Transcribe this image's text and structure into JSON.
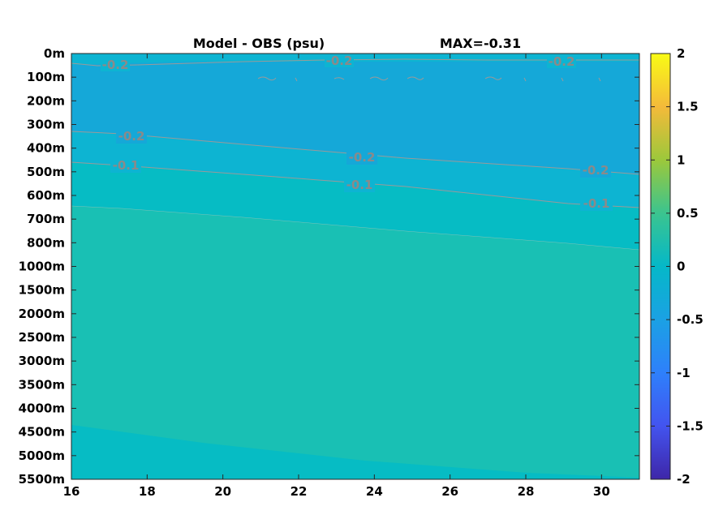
{
  "chart_data": {
    "type": "heatmap",
    "title_left": "Model - OBS (psu)",
    "title_right": "MAX=-0.31",
    "x_ticks": [
      "16",
      "18",
      "20",
      "22",
      "24",
      "26",
      "28",
      "30"
    ],
    "x_tick_values": [
      16,
      18,
      20,
      22,
      24,
      26,
      28,
      30
    ],
    "xlim": [
      16,
      31
    ],
    "y_ticks": [
      "0m",
      "100m",
      "200m",
      "300m",
      "400m",
      "500m",
      "600m",
      "700m",
      "800m",
      "1000m",
      "1500m",
      "2000m",
      "2500m",
      "3000m",
      "3500m",
      "4000m",
      "4500m",
      "5000m",
      "5500m"
    ],
    "y_axis_direction": "depth increasing downward, nonuniform spacing",
    "colorbar": {
      "ticks": [
        "2",
        "1.5",
        "1",
        "0.5",
        "0",
        "-0.5",
        "-1",
        "-1.5",
        "-2"
      ],
      "tick_values": [
        2,
        1.5,
        1,
        0.5,
        0,
        -0.5,
        -1,
        -1.5,
        -2
      ],
      "range": [
        -2,
        2
      ],
      "colormap": "parula"
    },
    "colors": {
      "band_lt_-0.2": "#15a8d8",
      "band_-0.2_-0.1": "#0db4d2",
      "band_-0.1_0": "#06bcc4",
      "band_ge_0": "#19c0b4",
      "contour_line": "#9a9a9a"
    },
    "contours": [
      {
        "level": -0.2,
        "labels": [
          {
            "text": "-0.2",
            "x": 17.2,
            "depth": "~20m"
          },
          {
            "text": "-0.2",
            "x": 23.1,
            "depth": "~10m"
          },
          {
            "text": "-0.2",
            "x": 29.0,
            "depth": "~10m"
          }
        ]
      },
      {
        "level": -0.2,
        "labels": [
          {
            "text": "-0.2",
            "x": 17.6,
            "depth": "~350m"
          },
          {
            "text": "-0.2",
            "x": 23.8,
            "depth": "~445m"
          },
          {
            "text": "-0.2",
            "x": 30.0,
            "depth": "~495m"
          }
        ]
      },
      {
        "level": -0.1,
        "labels": [
          {
            "text": "-0.1",
            "x": 17.4,
            "depth": "~480m"
          },
          {
            "text": "-0.1",
            "x": 23.7,
            "depth": "~555m"
          },
          {
            "text": "-0.1",
            "x": 30.0,
            "depth": "~630m"
          }
        ]
      },
      {
        "level": 0.0,
        "labels": []
      }
    ],
    "grid": false
  }
}
